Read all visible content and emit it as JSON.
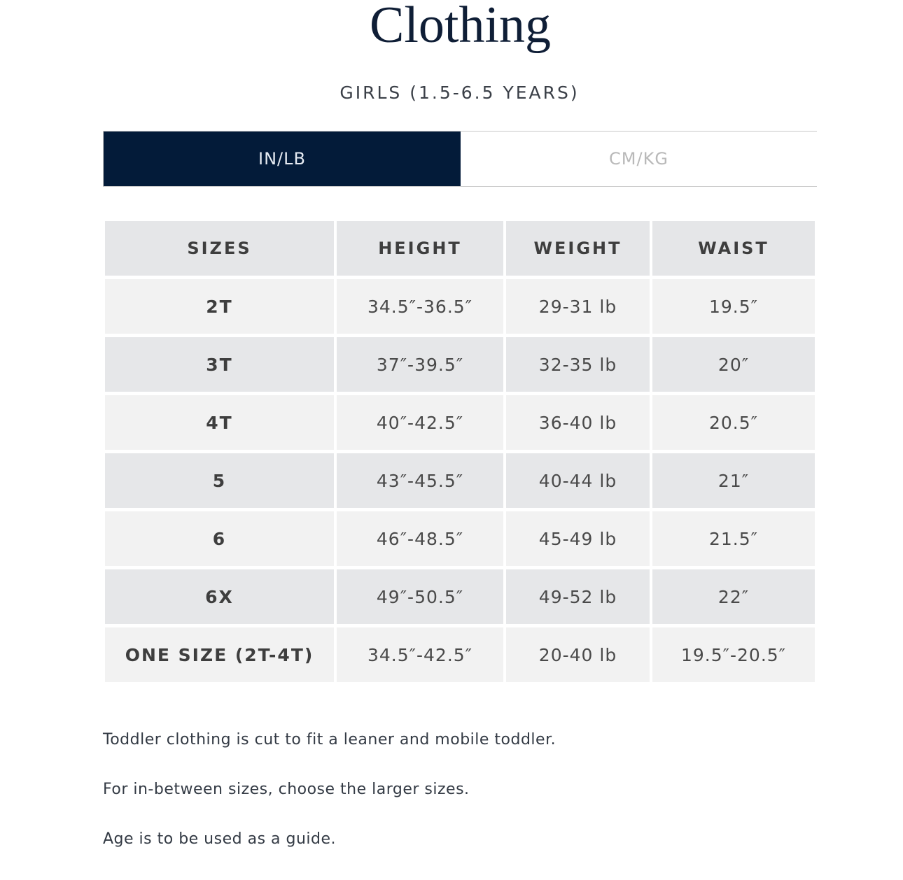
{
  "title": "Clothing",
  "subtitle": "GIRLS (1.5-6.5 YEARS)",
  "unit_toggle": {
    "active": "IN/LB",
    "inactive": "CM/KG",
    "active_color": "#031b39"
  },
  "table": {
    "headers": [
      "SIZES",
      "HEIGHT",
      "WEIGHT",
      "WAIST"
    ],
    "rows": [
      [
        "2T",
        "34.5″-36.5″",
        "29-31 lb",
        "19.5″"
      ],
      [
        "3T",
        "37″-39.5″",
        "32-35 lb",
        "20″"
      ],
      [
        "4T",
        "40″-42.5″",
        "36-40 lb",
        "20.5″"
      ],
      [
        "5",
        "43″-45.5″",
        "40-44 lb",
        "21″"
      ],
      [
        "6",
        "46″-48.5″",
        "45-49 lb",
        "21.5″"
      ],
      [
        "6X",
        "49″-50.5″",
        "49-52 lb",
        "22″"
      ],
      [
        "ONE SIZE (2T-4T)",
        "34.5″-42.5″",
        "20-40 lb",
        "19.5″-20.5″"
      ]
    ]
  },
  "notes": [
    "Toddler clothing is cut to fit a leaner and mobile toddler.",
    "For in-between sizes, choose the larger sizes.",
    "Age is to be used as a guide."
  ]
}
